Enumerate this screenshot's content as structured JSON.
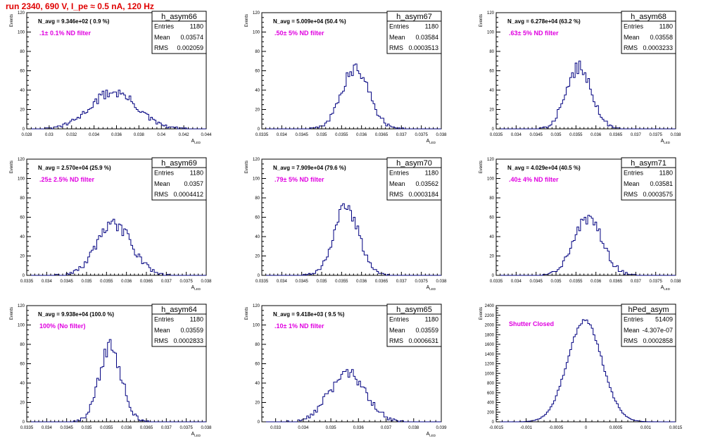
{
  "page_title": "run 2340,   690 V, I_pe ≈ 0.5 nA, 120 Hz",
  "stat_labels": {
    "entries": "Entries",
    "mean": "Mean",
    "rms": "RMS"
  },
  "chart_data": [
    {
      "type": "histogram",
      "name": "h_asym66",
      "annotation": "N_avg = 9.346e+02 ( 0.9 %)",
      "label": ".1± 0.1% ND filter",
      "stats": {
        "entries": "1180",
        "mean": "0.03574",
        "rms": "0.002059"
      },
      "xlabel": "A_LED",
      "ylabel": "Events",
      "xlim": [
        0.028,
        0.044
      ],
      "ylim": [
        0,
        120
      ],
      "xticks": [
        0.028,
        0.03,
        0.032,
        0.034,
        0.036,
        0.038,
        0.04,
        0.042,
        0.044
      ],
      "xtick_labels": [
        "0.028",
        "0.03",
        "0.032",
        "0.034",
        "0.036",
        "0.038",
        "0.04",
        "0.042",
        "0.044"
      ],
      "yticks": [
        0,
        20,
        40,
        60,
        80,
        100,
        120
      ],
      "ytick_labels": [
        "0",
        "20",
        "40",
        "60",
        "80",
        "100",
        "120"
      ],
      "gaussian": {
        "mean": 0.03574,
        "sigma": 0.00206,
        "peak": 38
      }
    },
    {
      "type": "histogram",
      "name": "h_asym67",
      "annotation": "N_avg = 5.009e+04 (50.4 %)",
      "label": ".50± 5% ND filter",
      "stats": {
        "entries": "1180",
        "mean": "0.03584",
        "rms": "0.0003513"
      },
      "xlabel": "A_LED",
      "ylabel": "Events",
      "xlim": [
        0.0335,
        0.038
      ],
      "ylim": [
        0,
        120
      ],
      "xticks": [
        0.0335,
        0.034,
        0.0345,
        0.035,
        0.0355,
        0.036,
        0.0365,
        0.037,
        0.0375,
        0.038
      ],
      "xtick_labels": [
        "0.0335",
        "0.034",
        "0.0345",
        "0.035",
        "0.0355",
        "0.036",
        "0.0365",
        "0.037",
        "0.0375",
        "0.038"
      ],
      "yticks": [
        0,
        20,
        40,
        60,
        80,
        100,
        120
      ],
      "ytick_labels": [
        "0",
        "20",
        "40",
        "60",
        "80",
        "100",
        "120"
      ],
      "gaussian": {
        "mean": 0.03584,
        "sigma": 0.00035,
        "peak": 62
      }
    },
    {
      "type": "histogram",
      "name": "h_asym68",
      "annotation": "N_avg = 6.278e+04 (63.2 %)",
      "label": ".63± 5% ND filter",
      "stats": {
        "entries": "1180",
        "mean": "0.03558",
        "rms": "0.0003233"
      },
      "xlabel": "A_LED",
      "ylabel": "Events",
      "xlim": [
        0.0335,
        0.038
      ],
      "ylim": [
        0,
        120
      ],
      "xticks": [
        0.0335,
        0.034,
        0.0345,
        0.035,
        0.0355,
        0.036,
        0.0365,
        0.037,
        0.0375,
        0.038
      ],
      "xtick_labels": [
        "0.0335",
        "0.034",
        "0.0345",
        "0.035",
        "0.0355",
        "0.036",
        "0.0365",
        "0.037",
        "0.0375",
        "0.038"
      ],
      "yticks": [
        0,
        20,
        40,
        60,
        80,
        100,
        120
      ],
      "ytick_labels": [
        "0",
        "20",
        "40",
        "60",
        "80",
        "100",
        "120"
      ],
      "gaussian": {
        "mean": 0.03558,
        "sigma": 0.00032,
        "peak": 64
      }
    },
    {
      "type": "histogram",
      "name": "h_asym69",
      "annotation": "N_avg = 2.570e+04 (25.9 %)",
      "label": ".25± 2.5% ND filter",
      "stats": {
        "entries": "1180",
        "mean": "0.0357",
        "rms": "0.0004412"
      },
      "xlabel": "A_LED",
      "ylabel": "Events",
      "xlim": [
        0.0335,
        0.038
      ],
      "ylim": [
        0,
        120
      ],
      "xticks": [
        0.0335,
        0.034,
        0.0345,
        0.035,
        0.0355,
        0.036,
        0.0365,
        0.037,
        0.0375,
        0.038
      ],
      "xtick_labels": [
        "0.0335",
        "0.034",
        "0.0345",
        "0.035",
        "0.0355",
        "0.036",
        "0.0365",
        "0.037",
        "0.0375",
        "0.038"
      ],
      "yticks": [
        0,
        20,
        40,
        60,
        80,
        100,
        120
      ],
      "ytick_labels": [
        "0",
        "20",
        "40",
        "60",
        "80",
        "100",
        "120"
      ],
      "gaussian": {
        "mean": 0.0357,
        "sigma": 0.00044,
        "peak": 52
      }
    },
    {
      "type": "histogram",
      "name": "h_asym70",
      "annotation": "N_avg = 7.909e+04 (79.6 %)",
      "label": ".79± 5% ND filter",
      "stats": {
        "entries": "1180",
        "mean": "0.03562",
        "rms": "0.0003184"
      },
      "xlabel": "A_LED",
      "ylabel": "Events",
      "xlim": [
        0.0335,
        0.038
      ],
      "ylim": [
        0,
        120
      ],
      "xticks": [
        0.0335,
        0.034,
        0.0345,
        0.035,
        0.0355,
        0.036,
        0.0365,
        0.037,
        0.0375,
        0.038
      ],
      "xtick_labels": [
        "0.0335",
        "0.034",
        "0.0345",
        "0.035",
        "0.0355",
        "0.036",
        "0.0365",
        "0.037",
        "0.0375",
        "0.038"
      ],
      "yticks": [
        0,
        20,
        40,
        60,
        80,
        100,
        120
      ],
      "ytick_labels": [
        "0",
        "20",
        "40",
        "60",
        "80",
        "100",
        "120"
      ],
      "gaussian": {
        "mean": 0.03562,
        "sigma": 0.00032,
        "peak": 70
      }
    },
    {
      "type": "histogram",
      "name": "h_asym71",
      "annotation": "N_avg = 4.029e+04 (40.5 %)",
      "label": ".40± 4% ND filter",
      "stats": {
        "entries": "1180",
        "mean": "0.03581",
        "rms": "0.0003575"
      },
      "xlabel": "A_LED",
      "ylabel": "Events",
      "xlim": [
        0.0335,
        0.038
      ],
      "ylim": [
        0,
        120
      ],
      "xticks": [
        0.0335,
        0.034,
        0.0345,
        0.035,
        0.0355,
        0.036,
        0.0365,
        0.037,
        0.0375,
        0.038
      ],
      "xtick_labels": [
        "0.0335",
        "0.034",
        "0.0345",
        "0.035",
        "0.0355",
        "0.036",
        "0.0365",
        "0.037",
        "0.0375",
        "0.038"
      ],
      "yticks": [
        0,
        20,
        40,
        60,
        80,
        100,
        120
      ],
      "ytick_labels": [
        "0",
        "20",
        "40",
        "60",
        "80",
        "100",
        "120"
      ],
      "gaussian": {
        "mean": 0.03581,
        "sigma": 0.00036,
        "peak": 60
      }
    },
    {
      "type": "histogram",
      "name": "h_asym64",
      "annotation": "N_avg = 9.938e+04 (100.0 %)",
      "label": "100% (No filter)",
      "stats": {
        "entries": "1180",
        "mean": "0.03559",
        "rms": "0.0002833"
      },
      "xlabel": "A_LED",
      "ylabel": "Events",
      "xlim": [
        0.0335,
        0.038
      ],
      "ylim": [
        0,
        120
      ],
      "xticks": [
        0.0335,
        0.034,
        0.0345,
        0.035,
        0.0355,
        0.036,
        0.0365,
        0.037,
        0.0375,
        0.038
      ],
      "xtick_labels": [
        "0.0335",
        "0.034",
        "0.0345",
        "0.035",
        "0.0355",
        "0.036",
        "0.0365",
        "0.037",
        "0.0375",
        "0.038"
      ],
      "yticks": [
        0,
        20,
        40,
        60,
        80,
        100,
        120
      ],
      "ytick_labels": [
        "0",
        "20",
        "40",
        "60",
        "80",
        "100",
        "120"
      ],
      "gaussian": {
        "mean": 0.03559,
        "sigma": 0.00028,
        "peak": 78
      }
    },
    {
      "type": "histogram",
      "name": "h_asym65",
      "annotation": "N_avg = 9.418e+03 ( 9.5 %)",
      "label": ".10± 1% ND filter",
      "stats": {
        "entries": "1180",
        "mean": "0.03559",
        "rms": "0.0006631"
      },
      "xlabel": "A_LED",
      "ylabel": "Events",
      "xlim": [
        0.0325,
        0.039
      ],
      "ylim": [
        0,
        120
      ],
      "xticks": [
        0.033,
        0.034,
        0.035,
        0.036,
        0.037,
        0.038,
        0.039
      ],
      "xtick_labels": [
        "0.033",
        "0.034",
        "0.035",
        "0.036",
        "0.037",
        "0.038",
        "0.039"
      ],
      "yticks": [
        0,
        20,
        40,
        60,
        80,
        100,
        120
      ],
      "ytick_labels": [
        "0",
        "20",
        "40",
        "60",
        "80",
        "100",
        "120"
      ],
      "gaussian": {
        "mean": 0.03559,
        "sigma": 0.00066,
        "peak": 50
      }
    },
    {
      "type": "histogram",
      "name": "hPed_asym",
      "annotation": "",
      "label": "Shutter Closed",
      "stats": {
        "entries": "51409",
        "mean": "-4.307e-07",
        "rms": "0.0002858"
      },
      "xlabel": "",
      "ylabel": "Events",
      "xlim": [
        -0.0015,
        0.0015
      ],
      "ylim": [
        0,
        2400
      ],
      "xticks": [
        -0.0015,
        -0.001,
        -0.0005,
        0,
        0.0005,
        0.001,
        0.0015
      ],
      "xtick_labels": [
        "-0.0015",
        "-0.001",
        "-0.0005",
        "0",
        "0.0005",
        "0.001",
        "0.0015"
      ],
      "yticks": [
        0,
        200,
        400,
        600,
        800,
        1000,
        1200,
        1400,
        1600,
        1800,
        2000,
        2200,
        2400
      ],
      "ytick_labels": [
        "0",
        "200",
        "400",
        "600",
        "800",
        "1000",
        "1200",
        "1400",
        "1600",
        "1800",
        "2000",
        "2200",
        "2400"
      ],
      "gaussian": {
        "mean": -2e-05,
        "sigma": 0.00029,
        "peak": 2080
      }
    }
  ]
}
